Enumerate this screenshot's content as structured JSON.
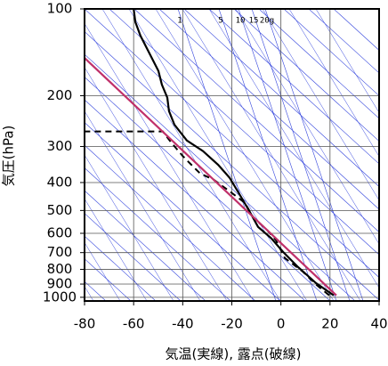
{
  "chart_data": {
    "type": "line",
    "x_label": "気温(実線), 露点(破線)",
    "y_label": "気圧(hPa)",
    "xlim": [
      -80,
      40
    ],
    "xticks": [
      -80,
      -60,
      -40,
      -20,
      0,
      20,
      40
    ],
    "ylim": [
      100,
      1030
    ],
    "yticks": [
      100,
      200,
      300,
      400,
      500,
      600,
      700,
      800,
      900,
      1000
    ],
    "y_scale": "log",
    "y_reversed": true,
    "grid": true,
    "annotations": [
      "1",
      "5",
      "10",
      "15",
      "20g"
    ],
    "series": [
      {
        "color": "#000000",
        "dash": false,
        "x": [
          21.5,
          14.3,
          7,
          0.9,
          -3.9,
          -9.3,
          -12.9,
          -16.5,
          -20.9,
          -25.6,
          -31.8,
          -38.3,
          -43.4,
          -45.6,
          -46.3,
          -48.5,
          -49.9,
          -53.5,
          -57.2,
          -59.3,
          -60
        ],
        "y": [
          985,
          893,
          786,
          696,
          625,
          570,
          502,
          445,
          385,
          347,
          311,
          286,
          252,
          226,
          203,
          183,
          164,
          143,
          124,
          111,
          100
        ]
      },
      {
        "color": "#000000",
        "dash": true,
        "x": [
          19.7,
          14.3,
          8.8,
          1.6,
          -2,
          -5.7,
          -11.1,
          -14.7,
          -20.9,
          -27.4,
          -32.9,
          -36.5,
          -40.1,
          -44.8,
          -48.1,
          -80
        ],
        "y": [
          985,
          903,
          813,
          731,
          634,
          583,
          531,
          470,
          429,
          391,
          372,
          347,
          323,
          290,
          266,
          266
        ]
      },
      {
        "color": "#c0306a",
        "dash": false,
        "x": [
          22.6,
          -80
        ],
        "y": [
          985,
          148
        ]
      }
    ]
  }
}
